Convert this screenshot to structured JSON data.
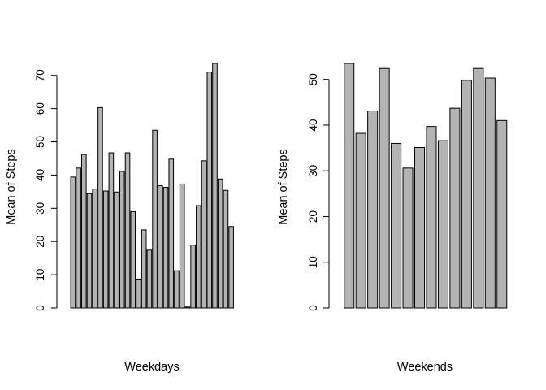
{
  "chart_data": [
    {
      "type": "bar",
      "xlabel": "Weekdays",
      "ylabel": "Mean of Steps",
      "yticks": [
        0,
        10,
        20,
        30,
        40,
        50,
        60,
        70
      ],
      "ylim": [
        0,
        73.6
      ],
      "bar_color": "#b3b3b3",
      "values": [
        39.4,
        42.1,
        46.2,
        34.4,
        35.8,
        60.3,
        35.2,
        46.7,
        34.9,
        41.1,
        46.7,
        29.0,
        8.7,
        23.5,
        17.4,
        53.5,
        36.8,
        36.3,
        44.8,
        11.2,
        37.3,
        0.3,
        18.9,
        30.8,
        44.3,
        71.0,
        73.6,
        38.8,
        35.4,
        24.5
      ]
    },
    {
      "type": "bar",
      "xlabel": "Weekends",
      "ylabel": "Mean of Steps",
      "yticks": [
        0,
        10,
        20,
        30,
        40,
        50
      ],
      "ylim": [
        0,
        53.5
      ],
      "bar_color": "#b3b3b3",
      "values": [
        53.5,
        38.2,
        43.1,
        52.4,
        36.0,
        30.6,
        35.1,
        39.7,
        36.6,
        43.7,
        49.8,
        52.4,
        50.3,
        41.0
      ]
    }
  ]
}
